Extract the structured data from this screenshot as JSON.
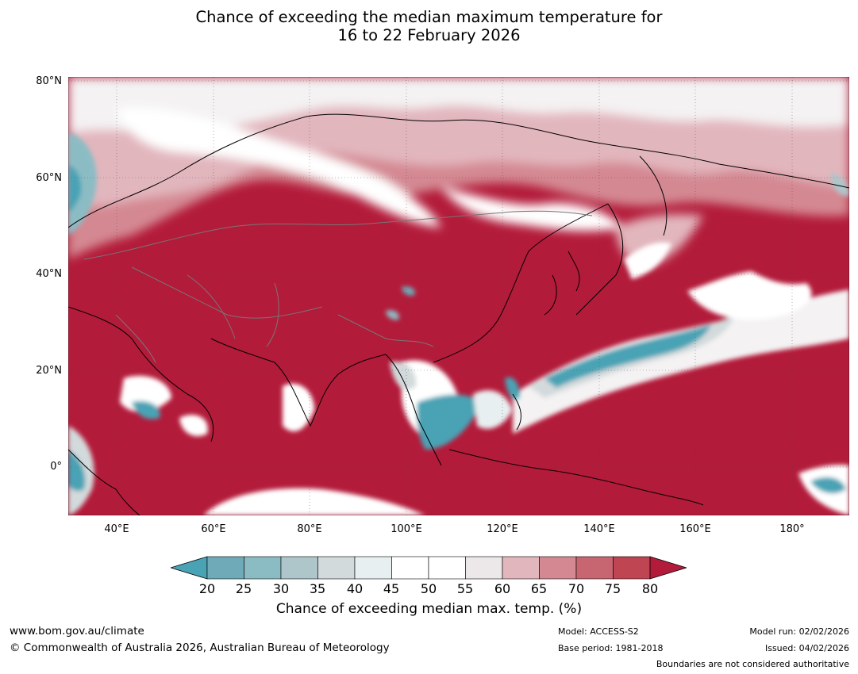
{
  "title_line1": "Chance of exceeding the median maximum temperature for",
  "title_line2": "16 to 22 February 2026",
  "lat_labels": [
    "80°N",
    "60°N",
    "40°N",
    "20°N",
    "0°"
  ],
  "lon_labels": [
    "40°E",
    "60°E",
    "80°E",
    "100°E",
    "120°E",
    "140°E",
    "160°E",
    "180°"
  ],
  "map": {
    "lon_range": [
      30,
      192
    ],
    "lat_range": [
      -10,
      81
    ],
    "colors": {
      "high": "#b31b3a",
      "ocean_low": "#4da6b8"
    }
  },
  "colorbar": {
    "ticks": [
      "20",
      "25",
      "30",
      "35",
      "40",
      "45",
      "50",
      "55",
      "60",
      "65",
      "70",
      "75",
      "80"
    ],
    "colors": [
      "#4aa3b5",
      "#6eaab8",
      "#8bbcc4",
      "#aec6ca",
      "#d3dadb",
      "#e8eff0",
      "#ffffff",
      "#ffffff",
      "#ece7e8",
      "#e2b6bd",
      "#d48892",
      "#c76571",
      "#bf4553",
      "#b31b3a"
    ],
    "title": "Chance of exceeding median max. temp. (%)"
  },
  "footer": {
    "website": "www.bom.gov.au/climate",
    "copyright": "© Commonwealth of Australia 2026, Australian Bureau of Meteorology",
    "model": "Model: ACCESS-S2",
    "base_period": "Base period: 1981-2018",
    "model_run": "Model run: 02/02/2026",
    "issued": "Issued: 04/02/2026",
    "disclaimer": "Boundaries are not considered authoritative"
  }
}
